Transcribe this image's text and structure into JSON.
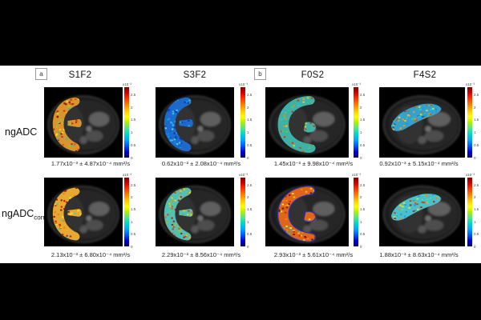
{
  "figure": {
    "panel_a_label": "a",
    "panel_b_label": "b",
    "columns": [
      "S1F2",
      "S3F2",
      "F0S2",
      "F4S2"
    ],
    "rows": [
      {
        "label": "ngADC",
        "sub": ""
      },
      {
        "label": "ngADC",
        "sub": "corr"
      }
    ],
    "colorbar": {
      "top_label": "x10⁻³",
      "ticks": [
        "2.5",
        "2",
        "1.5",
        "1",
        "0.5",
        "0"
      ],
      "max_value": 2.8,
      "colormap": "jet",
      "top_color": "#7f0000",
      "bottom_color": "#00007f"
    },
    "unit": "mm²/s",
    "panels": [
      {
        "caption": "1.77x10⁻³ ± 4.87x10⁻⁴ mm²/s",
        "shape": "c",
        "base": "#e09a30",
        "speckles": [
          "#cc2200",
          "#880000",
          "#ffdd00",
          "#ff8800",
          "#99cc33",
          "#33bbaa",
          "#ee4400"
        ]
      },
      {
        "caption": "0.62x10⁻³ ± 2.08x10⁻⁴ mm²/s",
        "shape": "c",
        "base": "#1e6fd6",
        "speckles": [
          "#0033cc",
          "#0099ee",
          "#33ccee",
          "#00bbcc",
          "#2255dd",
          "#55ddcc",
          "#0044aa"
        ]
      },
      {
        "caption": "1.45x10⁻³ ± 9.98x10⁻⁴ mm²/s",
        "shape": "g",
        "base": "#3fb8b0",
        "speckles": [
          "#ff8800",
          "#dd4400",
          "#ffcc00",
          "#33bb88",
          "#22ccdd",
          "#cc3311",
          "#66cc44"
        ]
      },
      {
        "caption": "0.92x10⁻³ ± 5.15x10⁻⁴ mm²/s",
        "shape": "wedge",
        "base": "#35a8d8",
        "speckles": [
          "#22ccdd",
          "#0066cc",
          "#ff9900",
          "#ffcc33",
          "#33bb99",
          "#dd5500",
          "#2299cc"
        ]
      },
      {
        "caption": "2.13x10⁻³ ± 6.80x10⁻⁴ mm²/s",
        "shape": "c",
        "base": "#f0b035",
        "speckles": [
          "#cc1100",
          "#880000",
          "#ffee00",
          "#ff7700",
          "#ee3300",
          "#44ccbb",
          "#ffaa00"
        ]
      },
      {
        "caption": "2.29x10⁻³ ± 8.56x10⁻⁴ mm²/s",
        "shape": "c",
        "base": "#55c8b8",
        "speckles": [
          "#ff8800",
          "#dd3300",
          "#ffcc00",
          "#33ccdd",
          "#88cc44",
          "#aa1100",
          "#ff5500"
        ]
      },
      {
        "caption": "2.93x10⁻³ ± 5.61x10⁻⁴ mm²/s",
        "shape": "g",
        "base": "#e86818",
        "outline": "#2233bb",
        "speckles": [
          "#990000",
          "#dd2200",
          "#ffcc00",
          "#ff8800",
          "#661100",
          "#33bbaa",
          "#ffee33"
        ]
      },
      {
        "caption": "1.88x10⁻³ ± 8.63x10⁻⁴ mm²/s",
        "shape": "wedge",
        "base": "#4cc8d8",
        "speckles": [
          "#dd3300",
          "#ff8800",
          "#ffdd00",
          "#2299dd",
          "#33ccbb",
          "#aa2200",
          "#55dd99"
        ]
      }
    ]
  }
}
